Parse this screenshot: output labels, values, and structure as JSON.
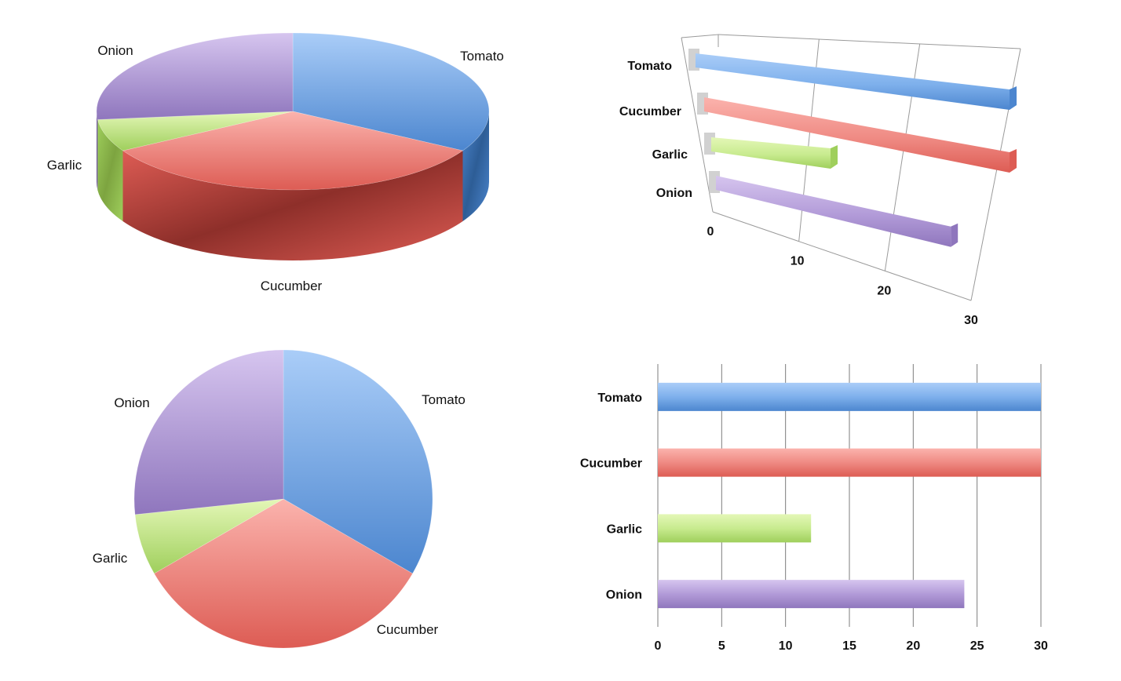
{
  "colors": {
    "Tomato": {
      "light": "#aacdf8",
      "main": "#7eb0ec",
      "dark": "#4c86cf",
      "side": "#2d5d96"
    },
    "Cucumber": {
      "light": "#fbb3ad",
      "main": "#ef8a83",
      "dark": "#dd5c54",
      "side": "#8e2f2a"
    },
    "Garlic": {
      "light": "#e4f7b7",
      "main": "#c8eb8f",
      "dark": "#9fcf5c",
      "side": "#7da440"
    },
    "Onion": {
      "light": "#d6c5ef",
      "main": "#b29bd8",
      "dark": "#8f76bd",
      "side": "#5f4a86"
    }
  },
  "chart_data": [
    {
      "type": "pie",
      "variant": "3d",
      "categories": [
        "Tomato",
        "Cucumber",
        "Garlic",
        "Onion"
      ],
      "values": [
        30,
        30,
        6,
        24
      ],
      "labels": {
        "Tomato": "Tomato",
        "Cucumber": "Cucumber",
        "Garlic": "Garlic",
        "Onion": "Onion"
      }
    },
    {
      "type": "bar",
      "orientation": "horizontal",
      "variant": "3d",
      "categories": [
        "Tomato",
        "Cucumber",
        "Garlic",
        "Onion"
      ],
      "values": [
        30,
        30,
        12,
        24
      ],
      "xlim": [
        0,
        30
      ],
      "x_ticks": [
        "0",
        "10",
        "20",
        "30"
      ]
    },
    {
      "type": "pie",
      "variant": "2d",
      "categories": [
        "Tomato",
        "Cucumber",
        "Garlic",
        "Onion"
      ],
      "values": [
        30,
        30,
        6,
        24
      ],
      "labels": {
        "Tomato": "Tomato",
        "Cucumber": "Cucumber",
        "Garlic": "Garlic",
        "Onion": "Onion"
      }
    },
    {
      "type": "bar",
      "orientation": "horizontal",
      "variant": "2d",
      "categories": [
        "Tomato",
        "Cucumber",
        "Garlic",
        "Onion"
      ],
      "values": [
        30,
        30,
        12,
        24
      ],
      "xlim": [
        0,
        30
      ],
      "x_ticks": [
        "0",
        "5",
        "10",
        "15",
        "20",
        "25",
        "30"
      ],
      "grid": true
    }
  ]
}
